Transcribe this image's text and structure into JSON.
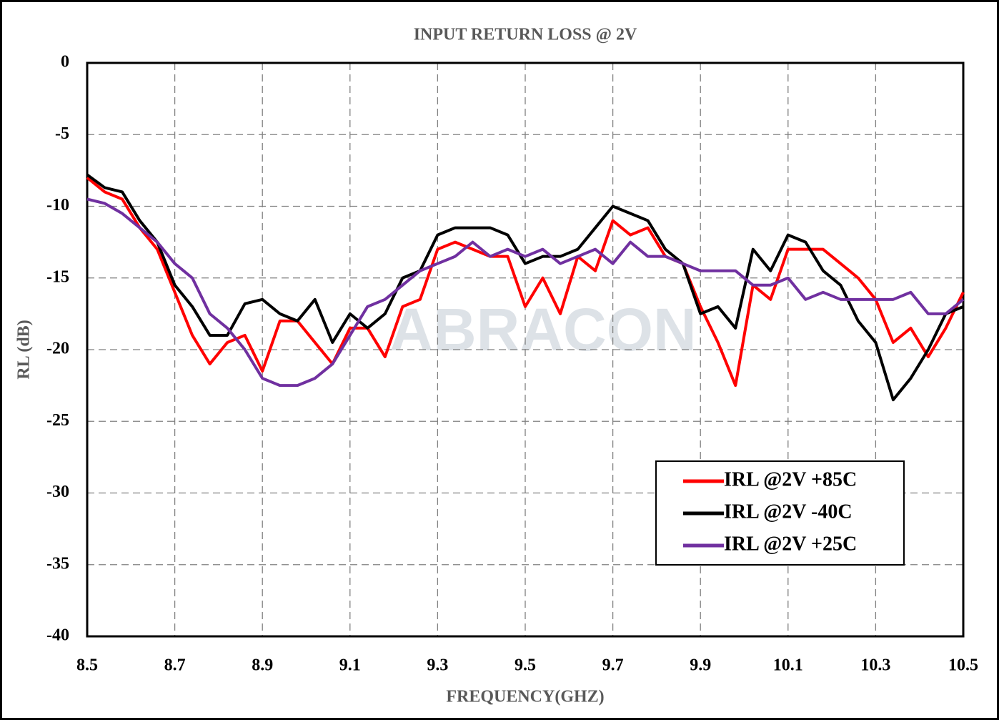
{
  "chart_data": {
    "type": "line",
    "title": "INPUT RETURN LOSS @ 2V",
    "xlabel": "FREQUENCY(GHZ)",
    "ylabel": "RL (dB)",
    "watermark": "ABRACON",
    "x": [
      8.5,
      8.54,
      8.58,
      8.62,
      8.66,
      8.7,
      8.74,
      8.78,
      8.82,
      8.86,
      8.9,
      8.94,
      8.98,
      9.02,
      9.06,
      9.1,
      9.14,
      9.18,
      9.22,
      9.26,
      9.3,
      9.34,
      9.38,
      9.42,
      9.46,
      9.5,
      9.54,
      9.58,
      9.62,
      9.66,
      9.7,
      9.74,
      9.78,
      9.82,
      9.86,
      9.9,
      9.94,
      9.98,
      10.02,
      10.06,
      10.1,
      10.14,
      10.18,
      10.22,
      10.26,
      10.3,
      10.34,
      10.38,
      10.42,
      10.46,
      10.5
    ],
    "series": [
      {
        "name": "IRL @2V +85C",
        "color": "#ff0000",
        "values": [
          -8,
          -9,
          -9.5,
          -11.5,
          -13,
          -16,
          -19,
          -21,
          -19.5,
          -19,
          -21.5,
          -18,
          -18,
          -19.5,
          -21,
          -18.5,
          -18.5,
          -20.5,
          -17,
          -16.5,
          -13,
          -12.5,
          -13,
          -13.5,
          -13.5,
          -17,
          -15,
          -17.5,
          -13.5,
          -14.5,
          -11,
          -12,
          -11.5,
          -13.5,
          -14,
          -17,
          -19.5,
          -22.5,
          -15.5,
          -16.5,
          -13,
          -13,
          -13,
          -14,
          -15,
          -16.5,
          -19.5,
          -18.5,
          -20.5,
          -18.5,
          -16
        ]
      },
      {
        "name": "IRL @2V -40C",
        "color": "#000000",
        "values": [
          -7.8,
          -8.7,
          -9,
          -11,
          -12.5,
          -15.5,
          -17,
          -19,
          -19,
          -16.8,
          -16.5,
          -17.5,
          -18,
          -16.5,
          -19.5,
          -17.5,
          -18.5,
          -17.5,
          -15,
          -14.5,
          -12,
          -11.5,
          -11.5,
          -11.5,
          -12,
          -14,
          -13.5,
          -13.5,
          -13,
          -11.5,
          -10,
          -10.5,
          -11,
          -13,
          -14,
          -17.5,
          -17,
          -18.5,
          -13,
          -14.5,
          -12,
          -12.5,
          -14.5,
          -15.5,
          -18,
          -19.5,
          -23.5,
          -22,
          -20,
          -17.5,
          -17
        ]
      },
      {
        "name": "IRL @2V +25C",
        "color": "#7030a0",
        "values": [
          -9.5,
          -9.8,
          -10.5,
          -11.5,
          -12.5,
          -14,
          -15,
          -17.5,
          -18.5,
          -20,
          -22,
          -22.5,
          -22.5,
          -22,
          -21,
          -19,
          -17,
          -16.5,
          -15.5,
          -14.5,
          -14,
          -13.5,
          -12.5,
          -13.5,
          -13,
          -13.5,
          -13,
          -14,
          -13.5,
          -13,
          -14,
          -12.5,
          -13.5,
          -13.5,
          -14,
          -14.5,
          -14.5,
          -14.5,
          -15.5,
          -15.5,
          -15,
          -16.5,
          -16,
          -16.5,
          -16.5,
          -16.5,
          -16.5,
          -16,
          -17.5,
          -17.5,
          -16.5
        ]
      }
    ],
    "xlim": [
      8.5,
      10.5
    ],
    "xticks": [
      8.5,
      8.7,
      8.9,
      9.1,
      9.3,
      9.5,
      9.7,
      9.9,
      10.1,
      10.3,
      10.5
    ],
    "ylim": [
      -40,
      0
    ],
    "yticks": [
      0,
      -5,
      -10,
      -15,
      -20,
      -25,
      -30,
      -35,
      -40
    ],
    "grid": true,
    "legend": "lower right"
  }
}
